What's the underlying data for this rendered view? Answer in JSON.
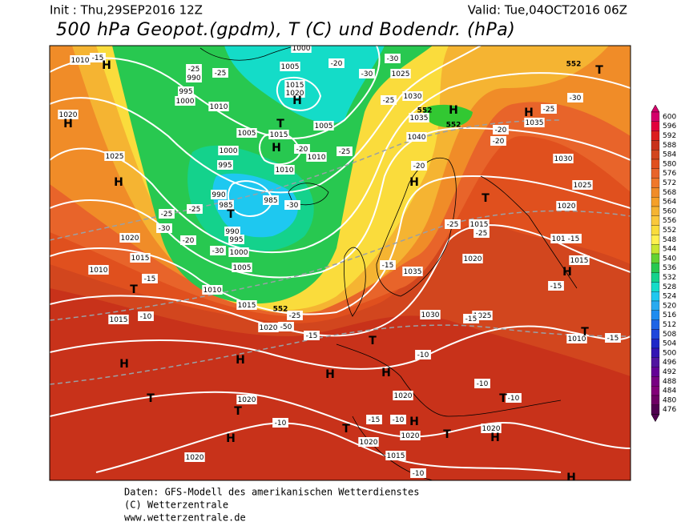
{
  "header": {
    "init": "Init : Thu,29SEP2016 12Z",
    "valid": "Valid: Tue,04OCT2016 06Z",
    "title": "500 hPa Geopot.(gpdm), T (C) und Bodendr. (hPa)"
  },
  "colorbar": {
    "levels": [
      600,
      596,
      592,
      588,
      584,
      580,
      576,
      572,
      568,
      564,
      560,
      556,
      552,
      548,
      544,
      540,
      536,
      532,
      528,
      524,
      520,
      516,
      512,
      508,
      504,
      500,
      496,
      492,
      488,
      484,
      480,
      476
    ],
    "colors": [
      "#d4006a",
      "#e2003c",
      "#dc1e1e",
      "#c8321a",
      "#d2461e",
      "#e0501e",
      "#e8642a",
      "#f0782a",
      "#f08c28",
      "#f5a028",
      "#f5b432",
      "#fac83c",
      "#fadc3c",
      "#fff050",
      "#c8e632",
      "#64d232",
      "#28c850",
      "#14d28c",
      "#14dcc8",
      "#1ec8f0",
      "#28aaf0",
      "#1e8cf0",
      "#1e64e6",
      "#1e46dc",
      "#1e28c8",
      "#3214b4",
      "#5014a0",
      "#640096",
      "#780082",
      "#820078",
      "#6e0064",
      "#500050"
    ]
  },
  "map": {
    "pressure_labels": [
      "1010",
      "1020",
      "1025",
      "1020",
      "1015",
      "1010",
      "1010",
      "1015",
      "1015",
      "1020",
      "990",
      "995",
      "1000",
      "1010",
      "1005",
      "1015",
      "1000",
      "995",
      "990",
      "985",
      "985",
      "990",
      "995",
      "1000",
      "1005",
      "1010",
      "1010",
      "1005",
      "1015",
      "1020",
      "1005",
      "1025",
      "1030",
      "1035",
      "1040",
      "1035",
      "1030",
      "1025",
      "1020",
      "1015",
      "1035",
      "1030",
      "1025",
      "1020",
      "1015",
      "1015",
      "1010",
      "1020",
      "1020",
      "1020",
      "1020",
      "1015",
      "1020",
      "1020",
      "1000"
    ],
    "temperature_labels": [
      "-15",
      "-25",
      "-25",
      "-20",
      "-30",
      "-25",
      "-30",
      "-25",
      "-25",
      "-30",
      "-20",
      "-30",
      "-15",
      "-10",
      "-50",
      "-25",
      "-15",
      "-15",
      "-10",
      "-15",
      "-20",
      "-25",
      "-25",
      "-20",
      "-20",
      "-25",
      "-30",
      "-15",
      "-15",
      "-15",
      "-10",
      "-10",
      "-10",
      "-15",
      "-10",
      "-10",
      "-30",
      "-20",
      "-25"
    ],
    "centers": [
      "H",
      "H",
      "H",
      "T",
      "H",
      "T",
      "H",
      "T",
      "H",
      "H",
      "T",
      "H",
      "T",
      "H",
      "T",
      "H",
      "T",
      "H",
      "H",
      "T",
      "H",
      "T",
      "H",
      "T",
      "H",
      "T",
      "T",
      "H",
      "H"
    ],
    "contour_labels": [
      "552",
      "552",
      "552",
      "552"
    ]
  },
  "footer": {
    "lines": [
      "Daten: GFS-Modell des amerikanischen Wetterdienstes",
      "(C) Wetterzentrale",
      "www.wetterzentrale.de"
    ]
  }
}
